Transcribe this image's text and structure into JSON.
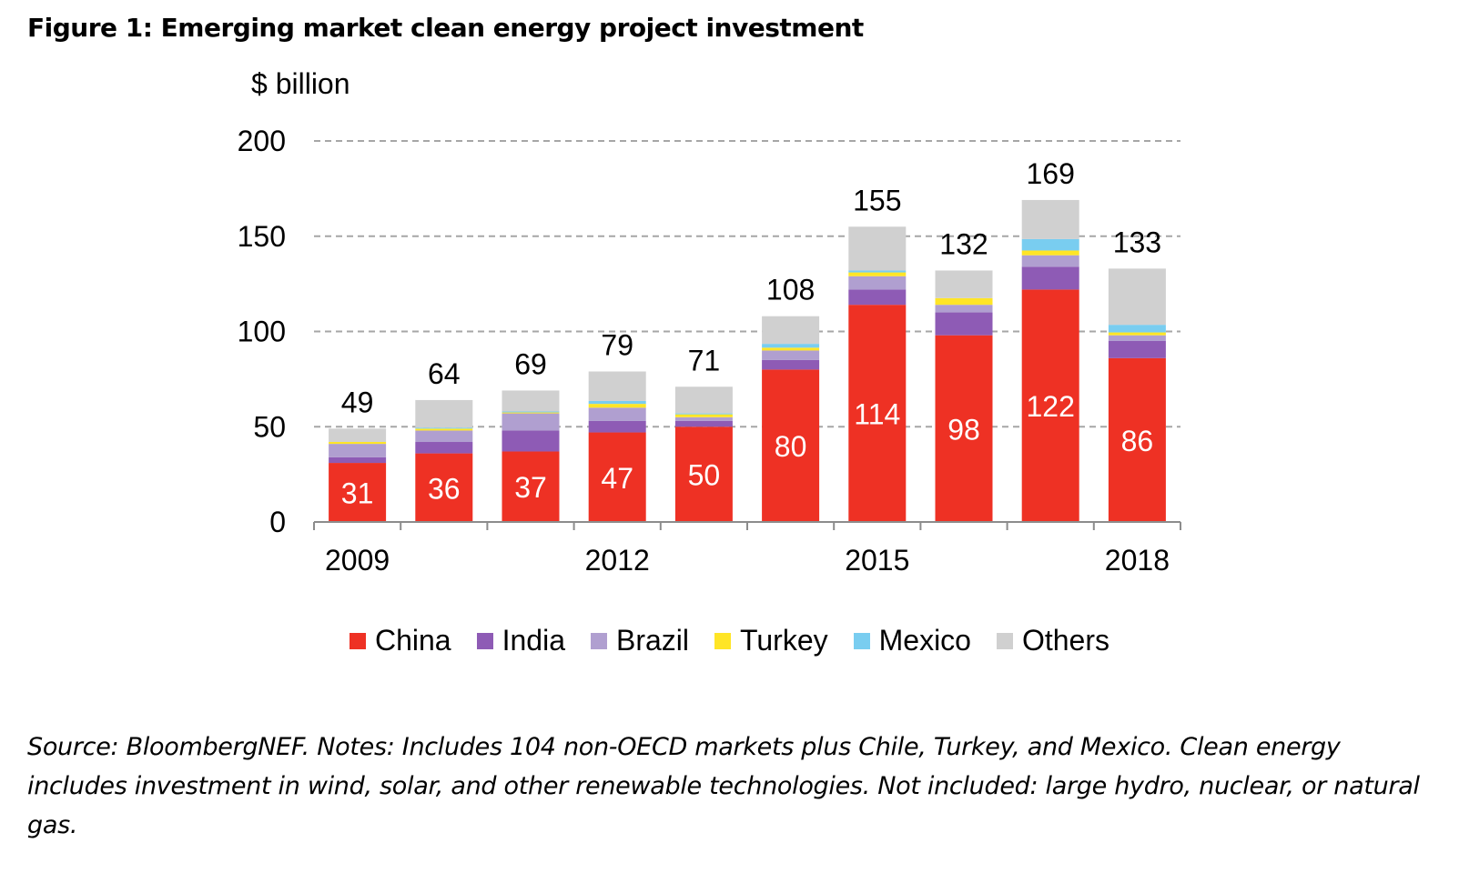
{
  "figure": {
    "title": "Figure 1: Emerging market clean energy project investment",
    "unit_label": "$ billion",
    "source_note": "Source: BloombergNEF. Notes: Includes 104 non-OECD markets plus Chile, Turkey, and Mexico. Clean energy includes investment in wind, solar, and other renewable technologies. Not included: large hydro, nuclear, or natural gas."
  },
  "chart_data": {
    "type": "bar",
    "stacked": true,
    "title": "Figure 1: Emerging market clean energy project investment",
    "ylabel": "$ billion",
    "categories": [
      "2009",
      "2010",
      "2011",
      "2012",
      "2013",
      "2014",
      "2015",
      "2016",
      "2017",
      "2018"
    ],
    "x_tick_labels": [
      "2009",
      "2012",
      "2015",
      "2018"
    ],
    "ylim": [
      0,
      200
    ],
    "y_ticks": [
      0,
      50,
      100,
      150,
      200
    ],
    "grid": "horizontal dashed",
    "legend_placement": "bottom",
    "series": [
      {
        "name": "China",
        "color": "#ee3124",
        "values": [
          31,
          36,
          37,
          47,
          50,
          80,
          114,
          98,
          122,
          86
        ]
      },
      {
        "name": "India",
        "color": "#8e5bb5",
        "values": [
          3,
          6,
          11,
          6,
          3,
          5,
          8,
          12,
          12,
          9
        ]
      },
      {
        "name": "Brazil",
        "color": "#b09fd0",
        "values": [
          7,
          6,
          9,
          7,
          2,
          5,
          7,
          4,
          6,
          3
        ]
      },
      {
        "name": "Turkey",
        "color": "#ffe526",
        "values": [
          1,
          1,
          0.5,
          2,
          1.5,
          1.5,
          2,
          3.5,
          2.5,
          1.5
        ]
      },
      {
        "name": "Mexico",
        "color": "#79cdf0",
        "values": [
          0,
          0.5,
          0.5,
          1.5,
          0.5,
          2,
          1,
          0,
          6,
          4
        ]
      },
      {
        "name": "Others",
        "color": "#d0d0d0",
        "values": [
          7,
          14.5,
          11,
          15.5,
          14,
          14.5,
          23,
          14.5,
          20.5,
          29.5
        ]
      }
    ],
    "totals": [
      49,
      64,
      69,
      79,
      71,
      108,
      155,
      132,
      169,
      133
    ],
    "china_labels": [
      "31",
      "36",
      "37",
      "47",
      "50",
      "80",
      "114",
      "98",
      "122",
      "86"
    ]
  }
}
